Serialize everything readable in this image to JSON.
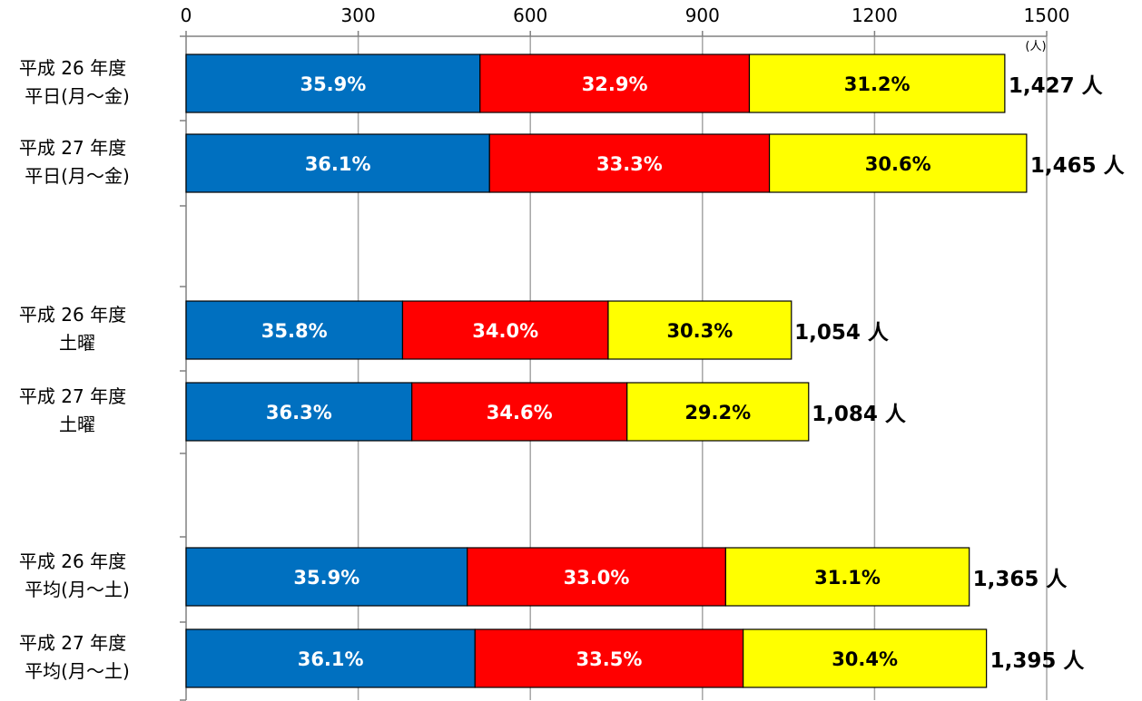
{
  "chart_data": {
    "type": "bar",
    "orientation": "horizontal",
    "stacked": true,
    "title": "",
    "xlabel": "",
    "ylabel": "",
    "x_unit": "(人)",
    "xlim": [
      0,
      1500
    ],
    "xticks": [
      0,
      300,
      600,
      900,
      1200,
      1500
    ],
    "grid": true,
    "legend": "none",
    "segment_colors": [
      "#0070C0",
      "#FF0000",
      "#FFFF00"
    ],
    "segment_label_colors": [
      "#FFFFFF",
      "#FFFFFF",
      "#000000"
    ],
    "groups": [
      [
        {
          "label_line1": "平成 26 年度",
          "label_line2": "平日(月～金)",
          "total": 1427,
          "total_label": "1,427 人",
          "percents": [
            35.9,
            32.9,
            31.2
          ],
          "percent_labels": [
            "35.9%",
            "32.9%",
            "31.2%"
          ]
        },
        {
          "label_line1": "平成 27 年度",
          "label_line2": "平日(月～金)",
          "total": 1465,
          "total_label": "1,465 人",
          "percents": [
            36.1,
            33.3,
            30.6
          ],
          "percent_labels": [
            "36.1%",
            "33.3%",
            "30.6%"
          ]
        }
      ],
      [
        {
          "label_line1": "平成 26 年度",
          "label_line2": "土曜",
          "total": 1054,
          "total_label": "1,054 人",
          "percents": [
            35.8,
            34.0,
            30.3
          ],
          "percent_labels": [
            "35.8%",
            "34.0%",
            "30.3%"
          ]
        },
        {
          "label_line1": "平成 27 年度",
          "label_line2": "土曜",
          "total": 1084,
          "total_label": "1,084 人",
          "percents": [
            36.3,
            34.6,
            29.2
          ],
          "percent_labels": [
            "36.3%",
            "34.6%",
            "29.2%"
          ]
        }
      ],
      [
        {
          "label_line1": "平成 26 年度",
          "label_line2": "平均(月～土)",
          "total": 1365,
          "total_label": "1,365 人",
          "percents": [
            35.9,
            33.0,
            31.1
          ],
          "percent_labels": [
            "35.9%",
            "33.0%",
            "31.1%"
          ]
        },
        {
          "label_line1": "平成 27 年度",
          "label_line2": "平均(月～土)",
          "total": 1395,
          "total_label": "1,395 人",
          "percents": [
            36.1,
            33.5,
            30.4
          ],
          "percent_labels": [
            "36.1%",
            "33.5%",
            "30.4%"
          ]
        }
      ]
    ]
  }
}
